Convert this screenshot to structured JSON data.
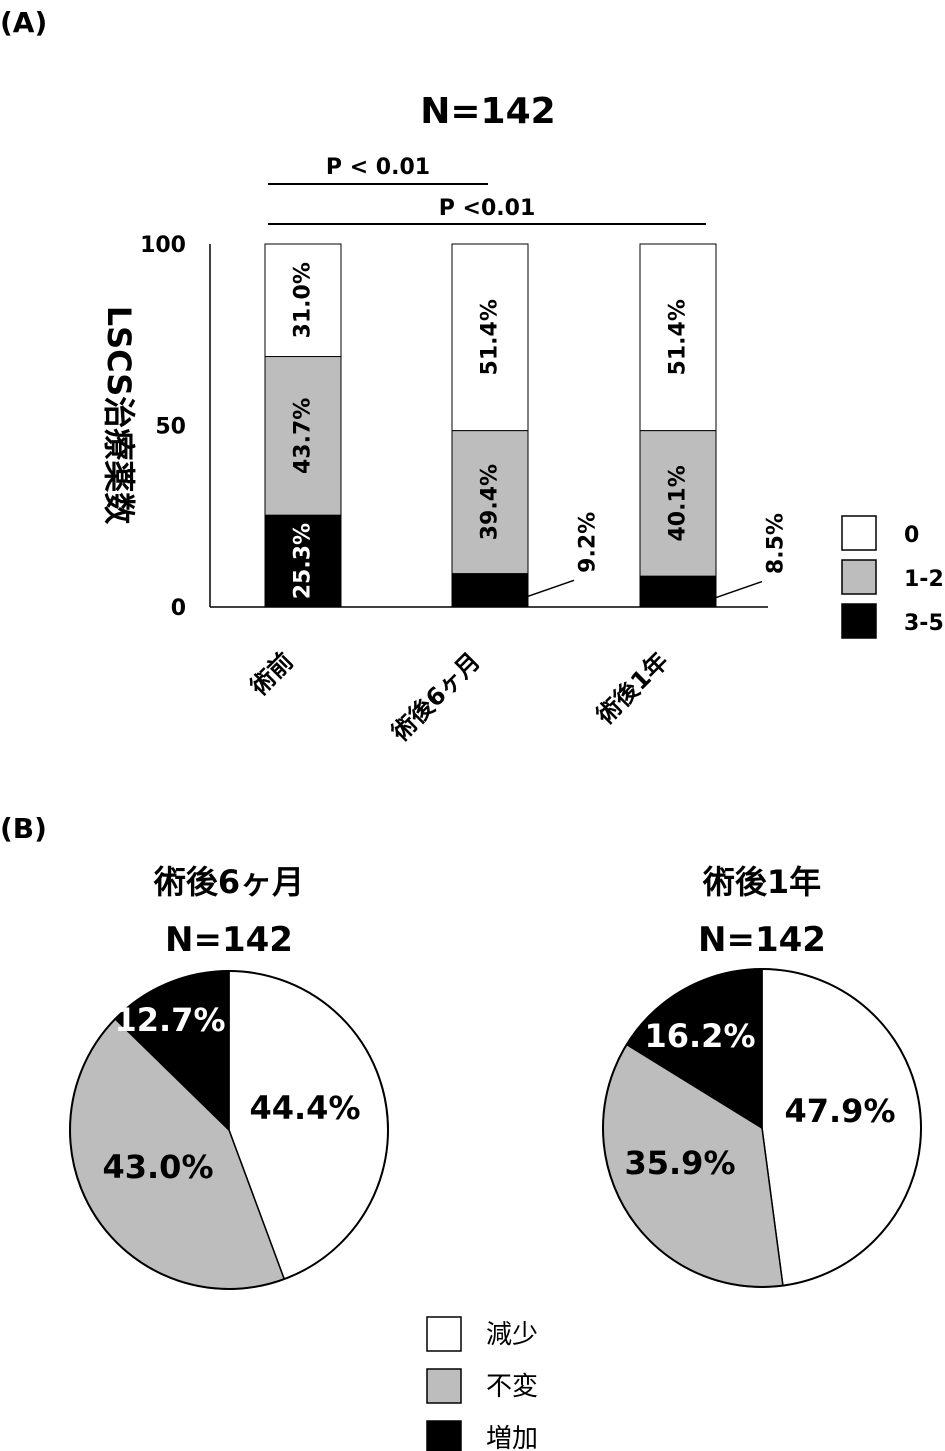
{
  "panel_a": {
    "label": "(A)",
    "title": "N=142",
    "ylabel": "LSCS治療薬数",
    "sig": [
      {
        "text": "P < 0.01"
      },
      {
        "text": "P <0.01"
      }
    ]
  },
  "panel_b": {
    "label": "(B)"
  },
  "colors": {
    "white": "#ffffff",
    "gray": "#bdbdbd",
    "black": "#000000"
  },
  "chart_data": [
    {
      "type": "bar",
      "stacked": true,
      "title": "N=142",
      "ylabel": "LSCS治療薬数",
      "ylim": [
        0,
        100
      ],
      "yticks": [
        0,
        50,
        100
      ],
      "categories": [
        "術前",
        "術後6ヶ月",
        "術後1年"
      ],
      "series": [
        {
          "name": "3-5",
          "color": "#000000",
          "values": [
            25.3,
            9.2,
            8.5
          ],
          "labels": [
            "25.3%",
            "9.2%",
            "8.5%"
          ]
        },
        {
          "name": "1-2",
          "color": "#bdbdbd",
          "values": [
            43.7,
            39.4,
            40.1
          ],
          "labels": [
            "43.7%",
            "39.4%",
            "40.1%"
          ]
        },
        {
          "name": "0",
          "color": "#ffffff",
          "values": [
            31.0,
            51.4,
            51.4
          ],
          "labels": [
            "31.0%",
            "51.4%",
            "51.4%"
          ]
        }
      ],
      "legend_order": [
        "0",
        "1-2",
        "3-5"
      ],
      "legend_position": "right",
      "significance": [
        {
          "from": "術前",
          "to": "術後6ヶ月",
          "label": "P < 0.01"
        },
        {
          "from": "術前",
          "to": "術後1年",
          "label": "P <0.01"
        }
      ]
    },
    {
      "type": "pie",
      "title": "術後6ヶ月",
      "subtitle": "N=142",
      "slices": [
        {
          "name": "減少",
          "value": 44.4,
          "label": "44.4%",
          "color": "#ffffff"
        },
        {
          "name": "不変",
          "value": 43.0,
          "label": "43.0%",
          "color": "#bdbdbd"
        },
        {
          "name": "増加",
          "value": 12.7,
          "label": "12.7%",
          "color": "#000000"
        }
      ]
    },
    {
      "type": "pie",
      "title": "術後1年",
      "subtitle": "N=142",
      "slices": [
        {
          "name": "減少",
          "value": 47.9,
          "label": "47.9%",
          "color": "#ffffff"
        },
        {
          "name": "不変",
          "value": 35.9,
          "label": "35.9%",
          "color": "#bdbdbd"
        },
        {
          "name": "増加",
          "value": 16.2,
          "label": "16.2%",
          "color": "#000000"
        }
      ]
    }
  ],
  "pie_legend": [
    "減少",
    "不変",
    "増加"
  ]
}
